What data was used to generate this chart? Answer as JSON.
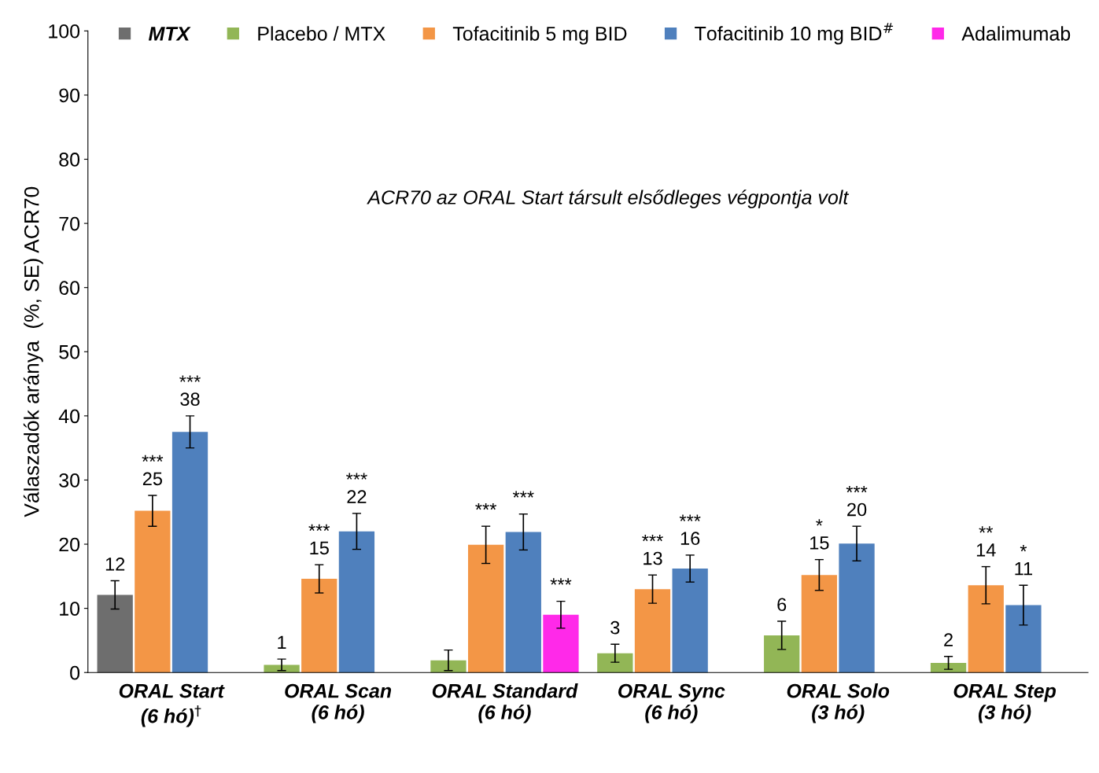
{
  "chart_data": {
    "type": "bar",
    "categories": [
      "ORAL Start\n(6 hó)$^{†}$",
      "ORAL Scan\n(6 hó)",
      "ORAL Standard\n(6 hó)",
      "ORAL Sync\n(6 hó)",
      "ORAL Solo\n(3 hó)",
      "ORAL Step\n(3 hó)"
    ],
    "ylabel": "Válaszadók aránya  (%, SE) ACR70",
    "ylim": [
      0,
      100
    ],
    "yticks": [
      0,
      10,
      20,
      30,
      40,
      50,
      60,
      70,
      80,
      90,
      100
    ],
    "grid": false,
    "legend": "top",
    "annotations": [
      "ACR70 az ORAL Start társult elsődleges végpontja volt"
    ],
    "series": [
      {
        "name": "MTX",
        "color": "#6e6e6e",
        "values": [
          12.1,
          null,
          null,
          null,
          null,
          null
        ],
        "errors": [
          2.2,
          null,
          null,
          null,
          null,
          null
        ],
        "value_labels": [
          "12",
          null,
          null,
          null,
          null,
          null
        ]
      },
      {
        "name": "Placebo / MTX",
        "color": "#92b656",
        "values": [
          null,
          1.2,
          1.9,
          3.0,
          5.8,
          1.5
        ],
        "errors": [
          null,
          0.9,
          1.6,
          1.4,
          2.2,
          1.0
        ],
        "value_labels": [
          null,
          "1",
          null,
          "3",
          "6",
          "2"
        ]
      },
      {
        "name": "Tofacitinib 5 mg BID",
        "color": "#f39646",
        "values": [
          25.2,
          14.6,
          19.9,
          13.0,
          15.2,
          13.6
        ],
        "errors": [
          2.4,
          2.2,
          2.9,
          2.2,
          2.4,
          2.9
        ],
        "value_labels": [
          "***\n25",
          "***\n15",
          "***",
          "***\n13",
          "*\n15",
          "**\n14"
        ]
      },
      {
        "name": "Tofacitinib 10 mg BID$^{#}$",
        "color": "#4f80bd",
        "values": [
          37.5,
          22.0,
          21.9,
          16.2,
          20.1,
          10.5
        ],
        "errors": [
          2.5,
          2.8,
          2.8,
          2.1,
          2.7,
          3.1
        ],
        "value_labels": [
          "***\n38",
          "***\n22",
          "***",
          "***\n16",
          "***\n20",
          "*\n11"
        ]
      },
      {
        "name": "Adalimumab",
        "color": "#ff29e9",
        "values": [
          null,
          null,
          9.0,
          null,
          null,
          null
        ],
        "errors": [
          null,
          null,
          2.1,
          null,
          null,
          null
        ],
        "value_labels": [
          null,
          null,
          "***",
          null,
          null,
          null
        ]
      }
    ]
  }
}
